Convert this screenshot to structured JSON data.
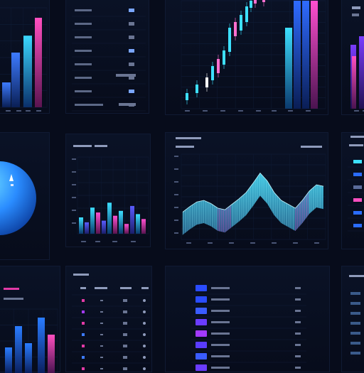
{
  "theme": {
    "bg": "#070c1b",
    "cyan": "#2fd3f0",
    "blue": "#2a6cff",
    "magenta": "#e23aa6",
    "violet": "#7b3cff"
  },
  "chart_data": [
    {
      "type": "bar",
      "categories": [
        "",
        "",
        "",
        ""
      ],
      "series": [
        {
          "values": [
            0.25,
            0.55,
            0.72,
            0.9
          ]
        }
      ]
    },
    {
      "type": "bar",
      "categories": [
        "",
        "",
        "",
        "",
        "",
        "",
        "",
        "",
        "",
        "",
        "",
        ""
      ],
      "series": [
        {
          "values": [
            0.5,
            0.35,
            0.8,
            0.65,
            0.4,
            0.95,
            0.55,
            0.7,
            0.3,
            0.85,
            0.6,
            0.45
          ]
        }
      ]
    },
    {
      "type": "pie",
      "values": [
        1
      ]
    },
    {
      "type": "bar",
      "categories": [
        "",
        "",
        "",
        "",
        "",
        "",
        "",
        "",
        "",
        "",
        "",
        "",
        "",
        "",
        "",
        "",
        "",
        "",
        "",
        ""
      ],
      "series": [
        {
          "values": [
            0.45,
            0.7,
            0.3,
            0.4,
            0.35,
            0.5,
            0.38,
            0.55,
            0.3,
            0.4,
            0.32,
            0.75,
            0.38,
            0.5,
            0.45,
            0.35,
            0.5,
            0.4,
            0.6,
            0.45
          ]
        }
      ]
    },
    {
      "type": "area",
      "x": [
        0,
        1,
        2,
        3,
        4,
        5,
        6,
        7,
        8,
        9,
        10,
        11,
        12,
        13,
        14,
        15,
        16,
        17,
        18,
        19,
        20
      ],
      "series": [
        {
          "values": [
            0.35,
            0.42,
            0.48,
            0.5,
            0.46,
            0.4,
            0.38,
            0.45,
            0.52,
            0.6,
            0.72,
            0.85,
            0.75,
            0.6,
            0.5,
            0.45,
            0.4,
            0.5,
            0.62,
            0.7,
            0.68
          ]
        }
      ]
    },
    {
      "type": "bar",
      "categories": [
        "",
        "",
        "",
        "",
        ""
      ],
      "series": [
        {
          "values": [
            0.3,
            0.55,
            0.35,
            0.65,
            0.45
          ]
        }
      ]
    }
  ]
}
